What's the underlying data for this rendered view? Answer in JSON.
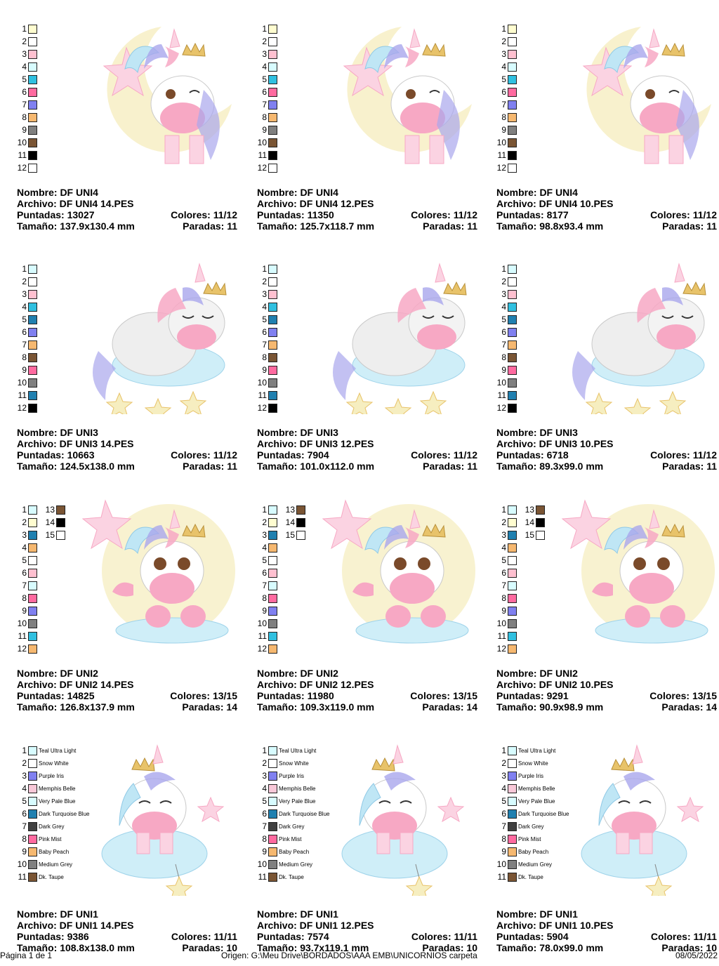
{
  "labels": {
    "nombre": "Nombre:",
    "archivo": "Archivo:",
    "puntadas": "Puntadas:",
    "tamano": "Tamaño:",
    "colores": "Colores:",
    "paradas": "Paradas:"
  },
  "colors": {
    "cream": "#fffdd0",
    "white": "#ffffff",
    "pink": "#ffc0d0",
    "paleblue": "#d8fcff",
    "turq": "#30c0e0",
    "hotpink": "#ff6aa0",
    "purple": "#8080f0",
    "peach": "#f6b870",
    "grey": "#808080",
    "brown": "#7a5534",
    "black": "#000000",
    "darkturq": "#2080b0",
    "darkgrey": "#404040",
    "memphis": "#f8c8d8"
  },
  "designs": [
    {
      "nombre": "DF UNI4",
      "archivo": "DF UNI4 14.PES",
      "puntadas": "13027",
      "tamano": "137.9x130.4 mm",
      "colores": "11/12",
      "paradas": "11",
      "swatches": [
        [
          "1",
          "cream"
        ],
        [
          "2",
          "white"
        ],
        [
          "3",
          "pink"
        ],
        [
          "4",
          "paleblue"
        ],
        [
          "5",
          "turq"
        ],
        [
          "6",
          "hotpink"
        ],
        [
          "7",
          "purple"
        ],
        [
          "8",
          "peach"
        ],
        [
          "9",
          "grey"
        ],
        [
          "10",
          "brown"
        ],
        [
          "11",
          "black"
        ],
        [
          "12",
          "white"
        ]
      ],
      "art": "uni4"
    },
    {
      "nombre": "DF UNI4",
      "archivo": "DF UNI4 12.PES",
      "puntadas": "11350",
      "tamano": "125.7x118.7 mm",
      "colores": "11/12",
      "paradas": "11",
      "swatches": [
        [
          "1",
          "cream"
        ],
        [
          "2",
          "white"
        ],
        [
          "3",
          "pink"
        ],
        [
          "4",
          "paleblue"
        ],
        [
          "5",
          "turq"
        ],
        [
          "6",
          "hotpink"
        ],
        [
          "7",
          "purple"
        ],
        [
          "8",
          "peach"
        ],
        [
          "9",
          "grey"
        ],
        [
          "10",
          "brown"
        ],
        [
          "11",
          "black"
        ],
        [
          "12",
          "white"
        ]
      ],
      "art": "uni4"
    },
    {
      "nombre": "DF UNI4",
      "archivo": "DF UNI4 10.PES",
      "puntadas": "8177",
      "tamano": "98.8x93.4 mm",
      "colores": "11/12",
      "paradas": "11",
      "swatches": [
        [
          "1",
          "cream"
        ],
        [
          "2",
          "white"
        ],
        [
          "3",
          "pink"
        ],
        [
          "4",
          "paleblue"
        ],
        [
          "5",
          "turq"
        ],
        [
          "6",
          "hotpink"
        ],
        [
          "7",
          "purple"
        ],
        [
          "8",
          "peach"
        ],
        [
          "9",
          "grey"
        ],
        [
          "10",
          "brown"
        ],
        [
          "11",
          "black"
        ],
        [
          "12",
          "white"
        ]
      ],
      "art": "uni4"
    },
    {
      "nombre": "DF UNI3",
      "archivo": "DF UNI3 14.PES",
      "puntadas": "10663",
      "tamano": "124.5x138.0 mm",
      "colores": "11/12",
      "paradas": "11",
      "swatches": [
        [
          "1",
          "paleblue"
        ],
        [
          "2",
          "white"
        ],
        [
          "3",
          "pink"
        ],
        [
          "4",
          "turq"
        ],
        [
          "5",
          "darkturq"
        ],
        [
          "6",
          "purple"
        ],
        [
          "7",
          "peach"
        ],
        [
          "8",
          "brown"
        ],
        [
          "9",
          "hotpink"
        ],
        [
          "10",
          "grey"
        ],
        [
          "11",
          "darkturq"
        ],
        [
          "12",
          "black"
        ]
      ],
      "art": "uni3"
    },
    {
      "nombre": "DF UNI3",
      "archivo": "DF UNI3 12.PES",
      "puntadas": "7904",
      "tamano": "101.0x112.0 mm",
      "colores": "11/12",
      "paradas": "11",
      "swatches": [
        [
          "1",
          "paleblue"
        ],
        [
          "2",
          "white"
        ],
        [
          "3",
          "pink"
        ],
        [
          "4",
          "turq"
        ],
        [
          "5",
          "darkturq"
        ],
        [
          "6",
          "purple"
        ],
        [
          "7",
          "peach"
        ],
        [
          "8",
          "brown"
        ],
        [
          "9",
          "hotpink"
        ],
        [
          "10",
          "grey"
        ],
        [
          "11",
          "darkturq"
        ],
        [
          "12",
          "black"
        ]
      ],
      "art": "uni3"
    },
    {
      "nombre": "DF UNI3",
      "archivo": "DF UNI3 10.PES",
      "puntadas": "6718",
      "tamano": "89.3x99.0 mm",
      "colores": "11/12",
      "paradas": "11",
      "swatches": [
        [
          "1",
          "paleblue"
        ],
        [
          "2",
          "white"
        ],
        [
          "3",
          "pink"
        ],
        [
          "4",
          "turq"
        ],
        [
          "5",
          "darkturq"
        ],
        [
          "6",
          "purple"
        ],
        [
          "7",
          "peach"
        ],
        [
          "8",
          "brown"
        ],
        [
          "9",
          "hotpink"
        ],
        [
          "10",
          "grey"
        ],
        [
          "11",
          "darkturq"
        ],
        [
          "12",
          "black"
        ]
      ],
      "art": "uni3"
    },
    {
      "nombre": "DF UNI2",
      "archivo": "DF UNI2 14.PES",
      "puntadas": "14825",
      "tamano": "126.8x137.9 mm",
      "colores": "13/15",
      "paradas": "14",
      "swatches": [
        [
          "1",
          "paleblue"
        ],
        [
          "2",
          "cream"
        ],
        [
          "3",
          "darkturq"
        ],
        [
          "4",
          "peach"
        ],
        [
          "5",
          "white"
        ],
        [
          "6",
          "pink"
        ],
        [
          "7",
          "paleblue"
        ],
        [
          "8",
          "hotpink"
        ],
        [
          "9",
          "purple"
        ],
        [
          "10",
          "grey"
        ],
        [
          "11",
          "turq"
        ],
        [
          "12",
          "peach"
        ],
        [
          "13",
          "brown"
        ],
        [
          "14",
          "black"
        ],
        [
          "15",
          "white"
        ]
      ],
      "art": "uni2"
    },
    {
      "nombre": "DF UNI2",
      "archivo": "DF UNI2 12.PES",
      "puntadas": "11980",
      "tamano": "109.3x119.0 mm",
      "colores": "13/15",
      "paradas": "14",
      "swatches": [
        [
          "1",
          "paleblue"
        ],
        [
          "2",
          "cream"
        ],
        [
          "3",
          "darkturq"
        ],
        [
          "4",
          "peach"
        ],
        [
          "5",
          "white"
        ],
        [
          "6",
          "pink"
        ],
        [
          "7",
          "paleblue"
        ],
        [
          "8",
          "hotpink"
        ],
        [
          "9",
          "purple"
        ],
        [
          "10",
          "grey"
        ],
        [
          "11",
          "turq"
        ],
        [
          "12",
          "peach"
        ],
        [
          "13",
          "brown"
        ],
        [
          "14",
          "black"
        ],
        [
          "15",
          "white"
        ]
      ],
      "art": "uni2"
    },
    {
      "nombre": "DF UNI2",
      "archivo": "DF UNI2 10.PES",
      "puntadas": "9291",
      "tamano": "90.9x98.9 mm",
      "colores": "13/15",
      "paradas": "14",
      "swatches": [
        [
          "1",
          "paleblue"
        ],
        [
          "2",
          "cream"
        ],
        [
          "3",
          "darkturq"
        ],
        [
          "4",
          "peach"
        ],
        [
          "5",
          "white"
        ],
        [
          "6",
          "pink"
        ],
        [
          "7",
          "paleblue"
        ],
        [
          "8",
          "hotpink"
        ],
        [
          "9",
          "purple"
        ],
        [
          "10",
          "grey"
        ],
        [
          "11",
          "turq"
        ],
        [
          "12",
          "peach"
        ],
        [
          "13",
          "brown"
        ],
        [
          "14",
          "black"
        ],
        [
          "15",
          "white"
        ]
      ],
      "art": "uni2"
    },
    {
      "nombre": "DF UNI1",
      "archivo": "DF UNI1 14.PES",
      "puntadas": "9386",
      "tamano": "108.8x138.0 mm",
      "colores": "11/11",
      "paradas": "10",
      "swatches": [
        [
          "1",
          "paleblue",
          "Teal Ultra Light"
        ],
        [
          "2",
          "white",
          "Snow White"
        ],
        [
          "3",
          "purple",
          "Purple Iris"
        ],
        [
          "4",
          "memphis",
          "Memphis Belle"
        ],
        [
          "5",
          "paleblue",
          "Very Pale Blue"
        ],
        [
          "6",
          "darkturq",
          "Dark Turquoise Blue"
        ],
        [
          "7",
          "darkgrey",
          "Dark Grey"
        ],
        [
          "8",
          "hotpink",
          "Pink Mist"
        ],
        [
          "9",
          "peach",
          "Baby Peach"
        ],
        [
          "10",
          "grey",
          "Medium Grey"
        ],
        [
          "11",
          "brown",
          "Dk. Taupe"
        ]
      ],
      "art": "uni1"
    },
    {
      "nombre": "DF UNI1",
      "archivo": "DF UNI1 12.PES",
      "puntadas": "7574",
      "tamano": "93.7x119.1 mm",
      "colores": "11/11",
      "paradas": "10",
      "swatches": [
        [
          "1",
          "paleblue",
          "Teal Ultra Light"
        ],
        [
          "2",
          "white",
          "Snow White"
        ],
        [
          "3",
          "purple",
          "Purple Iris"
        ],
        [
          "4",
          "memphis",
          "Memphis Belle"
        ],
        [
          "5",
          "paleblue",
          "Very Pale Blue"
        ],
        [
          "6",
          "darkturq",
          "Dark Turquoise Blue"
        ],
        [
          "7",
          "darkgrey",
          "Dark Grey"
        ],
        [
          "8",
          "hotpink",
          "Pink Mist"
        ],
        [
          "9",
          "peach",
          "Baby Peach"
        ],
        [
          "10",
          "grey",
          "Medium Grey"
        ],
        [
          "11",
          "brown",
          "Dk. Taupe"
        ]
      ],
      "art": "uni1"
    },
    {
      "nombre": "DF UNI1",
      "archivo": "DF UNI1 10.PES",
      "puntadas": "5904",
      "tamano": "78.0x99.0 mm",
      "colores": "11/11",
      "paradas": "10",
      "swatches": [
        [
          "1",
          "paleblue",
          "Teal Ultra Light"
        ],
        [
          "2",
          "white",
          "Snow White"
        ],
        [
          "3",
          "purple",
          "Purple Iris"
        ],
        [
          "4",
          "memphis",
          "Memphis Belle"
        ],
        [
          "5",
          "paleblue",
          "Very Pale Blue"
        ],
        [
          "6",
          "darkturq",
          "Dark Turquoise Blue"
        ],
        [
          "7",
          "darkgrey",
          "Dark Grey"
        ],
        [
          "8",
          "hotpink",
          "Pink Mist"
        ],
        [
          "9",
          "peach",
          "Baby Peach"
        ],
        [
          "10",
          "grey",
          "Medium Grey"
        ],
        [
          "11",
          "brown",
          "Dk. Taupe"
        ]
      ],
      "art": "uni1"
    }
  ],
  "footer": {
    "page": "Página 1 de 1",
    "origin": "Origen:  G:\\Meu Drive\\BORDADOS\\AAA EMB\\UNICORNIOS carpeta",
    "date": "08/05/2022"
  }
}
